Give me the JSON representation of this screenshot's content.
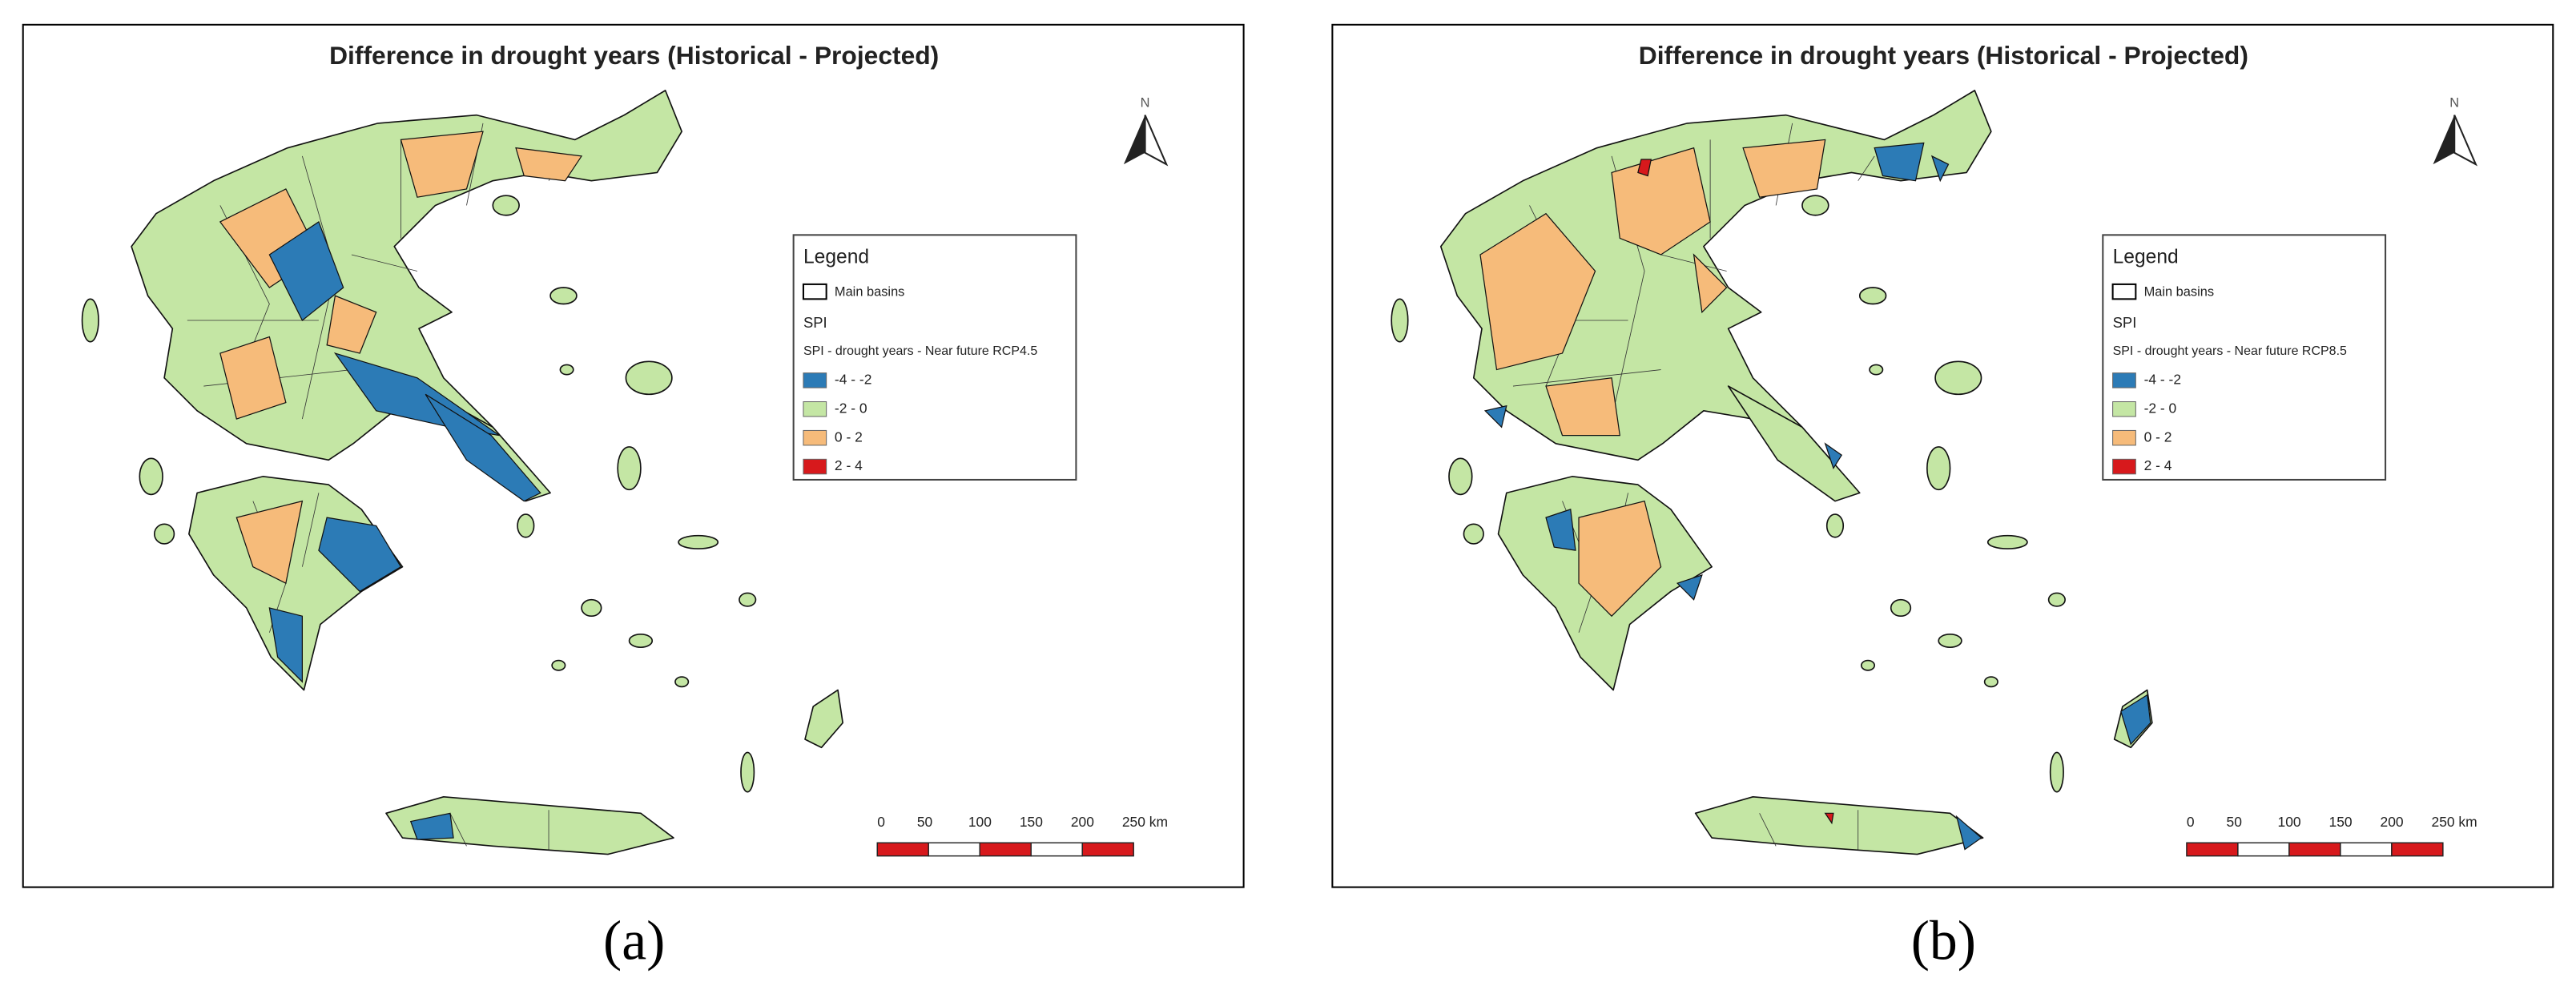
{
  "panels": [
    {
      "title": "Difference in drought years (Historical - Projected)",
      "north": "N",
      "legend": {
        "title": "Legend",
        "basins": "Main basins",
        "index": "SPI",
        "subtitle": "SPI - drought years - Near future RCP4.5",
        "classes": [
          {
            "label": "-4 - -2",
            "color": "#2c7bb6"
          },
          {
            "label": "-2 - 0",
            "color": "#c4e6a4"
          },
          {
            "label": "0 - 2",
            "color": "#f6bb7a"
          },
          {
            "label": "2 - 4",
            "color": "#d7191c"
          }
        ]
      },
      "scale": {
        "labels": [
          "0",
          "50",
          "100",
          "150",
          "200",
          "250 km"
        ]
      },
      "caption": "(a)"
    },
    {
      "title": "Difference in drought years (Historical - Projected)",
      "north": "N",
      "legend": {
        "title": "Legend",
        "basins": "Main basins",
        "index": "SPI",
        "subtitle": "SPI - drought years - Near future RCP8.5",
        "classes": [
          {
            "label": "-4 - -2",
            "color": "#2c7bb6"
          },
          {
            "label": "-2 - 0",
            "color": "#c4e6a4"
          },
          {
            "label": "0 - 2",
            "color": "#f6bb7a"
          },
          {
            "label": "2 - 4",
            "color": "#d7191c"
          }
        ]
      },
      "scale": {
        "labels": [
          "0",
          "50",
          "100",
          "150",
          "200",
          "250 km"
        ]
      },
      "caption": "(b)"
    }
  ]
}
